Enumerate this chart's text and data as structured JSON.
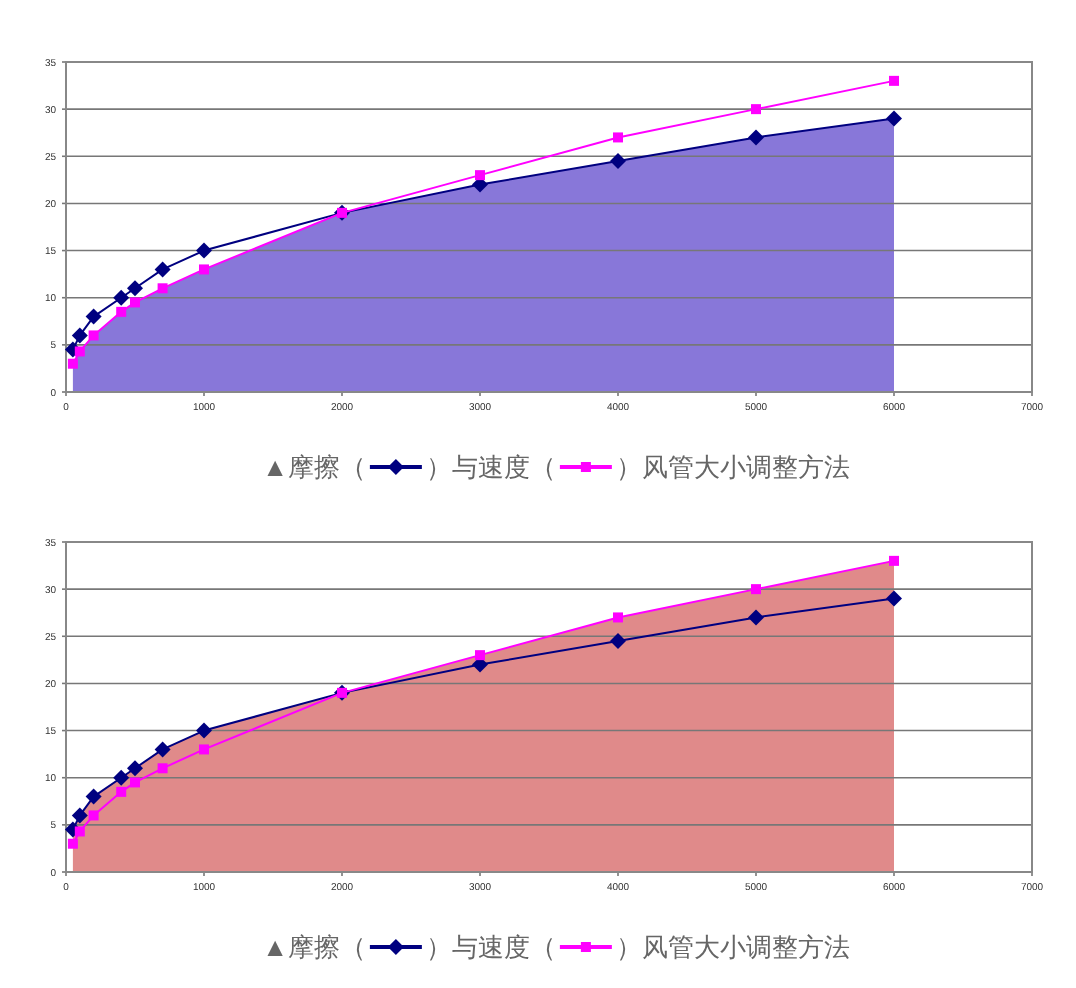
{
  "chart_data": [
    {
      "type": "line",
      "xlim": [
        0,
        7000
      ],
      "xticks": [
        0,
        1000,
        2000,
        3000,
        4000,
        5000,
        6000,
        7000
      ],
      "ylim": [
        0,
        35
      ],
      "yticks": [
        0,
        5,
        10,
        15,
        20,
        25,
        30,
        35
      ],
      "grid": "y",
      "line_style": "solid",
      "annotations": [
        "▲摩擦（",
        "）与速度（",
        "）风管大小调整方法"
      ],
      "series": [
        {
          "type": "area",
          "color": "#8877d9",
          "x": [
            50,
            100,
            200,
            400,
            500,
            700,
            1000,
            2000,
            3000,
            4000,
            5000,
            6000
          ],
          "values": [
            3,
            4.3,
            6,
            8.5,
            9.5,
            11,
            13,
            19,
            22,
            24.5,
            27,
            29
          ]
        },
        {
          "type": "line",
          "color": "#000080",
          "marker": "diamond",
          "x": [
            50,
            100,
            200,
            400,
            500,
            700,
            1000,
            2000,
            3000,
            4000,
            5000,
            6000
          ],
          "values": [
            4.5,
            6,
            8,
            10,
            11,
            13,
            15,
            19,
            22,
            24.5,
            27,
            29
          ]
        },
        {
          "type": "line",
          "color": "#ff00ff",
          "marker": "square",
          "x": [
            50,
            100,
            200,
            400,
            500,
            700,
            1000,
            2000,
            3000,
            4000,
            5000,
            6000
          ],
          "values": [
            3,
            4.3,
            6,
            8.5,
            9.5,
            11,
            13,
            19,
            23,
            27,
            30,
            33
          ]
        }
      ]
    },
    {
      "type": "line",
      "xlim": [
        0,
        7000
      ],
      "xticks": [
        0,
        1000,
        2000,
        3000,
        4000,
        5000,
        6000,
        7000
      ],
      "ylim": [
        0,
        35
      ],
      "yticks": [
        0,
        5,
        10,
        15,
        20,
        25,
        30,
        35
      ],
      "grid": "y",
      "line_style": "solid",
      "annotations": [
        "▲摩擦（",
        "）与速度（",
        "）风管大小调整方法"
      ],
      "series": [
        {
          "type": "area",
          "color": "#e08a8a",
          "x": [
            50,
            100,
            200,
            400,
            500,
            700,
            1000,
            2000,
            3000,
            4000,
            5000,
            6000
          ],
          "values": [
            4.5,
            6,
            8,
            10,
            11,
            13,
            15,
            19,
            23,
            27,
            30,
            33
          ]
        },
        {
          "type": "line",
          "color": "#000080",
          "marker": "diamond",
          "x": [
            50,
            100,
            200,
            400,
            500,
            700,
            1000,
            2000,
            3000,
            4000,
            5000,
            6000
          ],
          "values": [
            4.5,
            6,
            8,
            10,
            11,
            13,
            15,
            19,
            22,
            24.5,
            27,
            29
          ]
        },
        {
          "type": "line",
          "color": "#ff00ff",
          "marker": "square",
          "x": [
            50,
            100,
            200,
            400,
            500,
            700,
            1000,
            2000,
            3000,
            4000,
            5000,
            6000
          ],
          "values": [
            3,
            4.3,
            6,
            8.5,
            9.5,
            11,
            13,
            19,
            23,
            27,
            30,
            33
          ]
        }
      ]
    }
  ]
}
